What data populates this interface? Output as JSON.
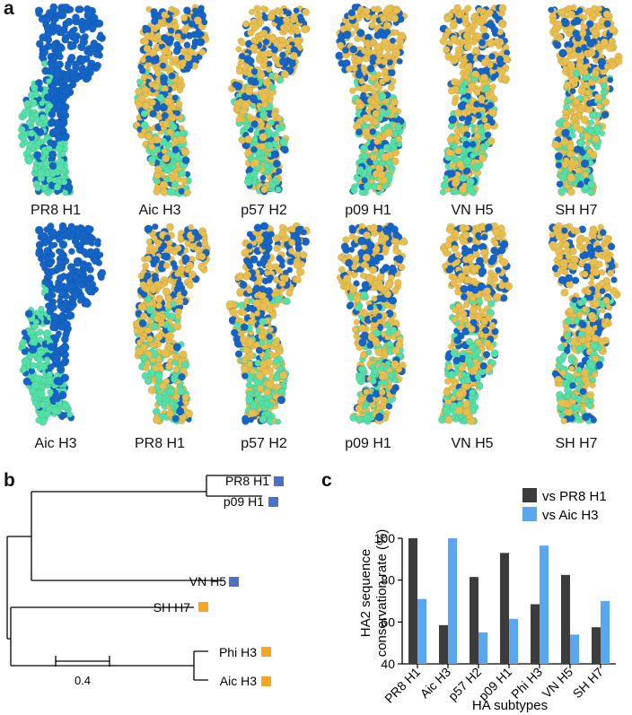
{
  "panels": {
    "a": "a",
    "b": "b",
    "c": "c"
  },
  "colors": {
    "blue": "#1565c8",
    "gold": "#e8bf4e",
    "teal": "#55e0a8",
    "dark": "#3c3c3c",
    "light_blue": "#5aa6f0",
    "orange": "#f6a524",
    "tree_blue": "#4a72c4"
  },
  "structures": {
    "row1": [
      "PR8 H1",
      "Aic H3",
      "p57 H2",
      "p09 H1",
      "VN H5",
      "SH H7"
    ],
    "row2": [
      "Aic H3",
      "PR8 H1",
      "p57 H2",
      "p09 H1",
      "VN H5",
      "SH H7"
    ]
  },
  "tree": {
    "leaves": [
      {
        "label": "PR8 H1",
        "group": "blue"
      },
      {
        "label": "p09 H1",
        "group": "blue"
      },
      {
        "label": "VN H5",
        "group": "blue"
      },
      {
        "label": "SH H7",
        "group": "orange"
      },
      {
        "label": "Phi H3",
        "group": "orange"
      },
      {
        "label": "Aic H3",
        "group": "orange"
      }
    ],
    "scale_label": "0.4"
  },
  "chart_data": {
    "type": "bar",
    "categories": [
      "PR8 H1",
      "Aic H3",
      "p57 H2",
      "p09 H1",
      "Phi H3",
      "VN H5",
      "SH H7"
    ],
    "series": [
      {
        "name": "vs PR8 H1",
        "values": [
          100,
          58.5,
          81.5,
          93,
          68.5,
          82.5,
          57.5
        ],
        "color": "#3c3c3c"
      },
      {
        "name": "vs Aic H3",
        "values": [
          71,
          100,
          55,
          61.5,
          96.5,
          54,
          70
        ],
        "color": "#5aa6f0"
      }
    ],
    "ylabel_line1": "HA2 sequence",
    "ylabel_line2": "conservation rate (%)",
    "xlabel": "HA subtypes",
    "ylim": [
      40,
      100
    ],
    "yticks": [
      40,
      60,
      80,
      100
    ],
    "legend_position": "top-right"
  }
}
